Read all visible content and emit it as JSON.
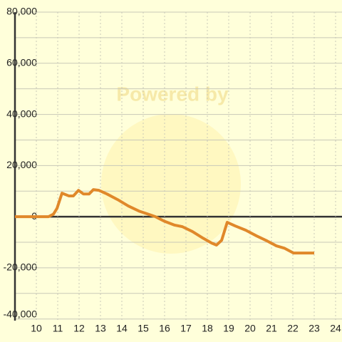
{
  "chart_data": {
    "type": "line",
    "watermark": "Powered by",
    "x": [
      9,
      10.57,
      10.8,
      10.97,
      11.2,
      11.53,
      11.73,
      11.97,
      12.2,
      12.47,
      12.67,
      12.93,
      13.3,
      13.8,
      14.3,
      14.8,
      15.3,
      15.57,
      15.97,
      16.47,
      16.83,
      17.3,
      17.8,
      18.2,
      18.43,
      18.67,
      18.93,
      19.3,
      19.8,
      20.3,
      20.8,
      21.23,
      21.6,
      22.03,
      23.0
    ],
    "series": [
      {
        "color": "#e0882a",
        "values": [
          0,
          0,
          1000,
          3300,
          9200,
          8100,
          8100,
          10300,
          8900,
          8900,
          10600,
          10300,
          8900,
          6700,
          4200,
          2200,
          800,
          0,
          -1700,
          -3300,
          -3900,
          -5800,
          -8400,
          -10300,
          -11100,
          -9200,
          -2200,
          -3600,
          -5300,
          -7500,
          -9500,
          -11400,
          -12300,
          -14200,
          -14200
        ]
      }
    ],
    "xlim": [
      9,
      24.3
    ],
    "xticks": [
      10,
      11,
      12,
      13,
      14,
      15,
      16,
      17,
      18,
      19,
      20,
      21,
      22,
      23,
      24
    ],
    "ylim": [
      -49000,
      80000
    ],
    "yticks": [
      {
        "value": 80000,
        "label": "80,000"
      },
      {
        "value": 60000,
        "label": "60,000"
      },
      {
        "value": 40000,
        "label": "40,000"
      },
      {
        "value": 20000,
        "label": "20,000"
      },
      0,
      {
        "value": -20000,
        "label": "-20,000"
      },
      {
        "value": -40000,
        "label": "-40,000"
      }
    ],
    "yminorticks": [
      70000,
      50000,
      30000,
      10000,
      -10000,
      -30000
    ],
    "grid": true
  }
}
